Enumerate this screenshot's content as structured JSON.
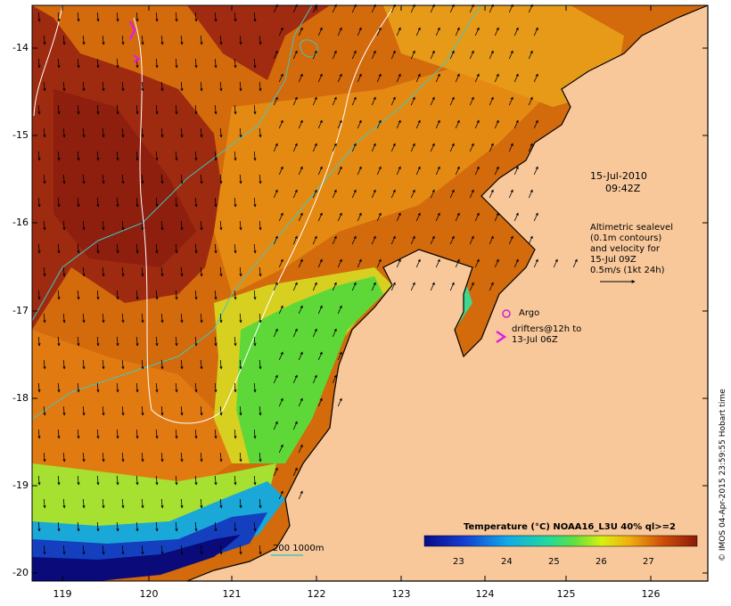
{
  "map": {
    "date": "15-Jul-2010",
    "time": "09:42Z",
    "altimetry_lines": [
      "Altimetric sealevel",
      "(0.1m contours)",
      "and velocity for",
      "15-Jul 09Z",
      "0.5m/s (1kt 24h)"
    ],
    "argo_label": "Argo",
    "drifter_lines": [
      "drifters@12h to",
      "13-Jul 06Z"
    ],
    "isobath_label": "200  1000m",
    "colorbar_title": "Temperature (°C) NOAA16_L3U 40% ql>=2",
    "colorbar_ticks": [
      "23",
      "24",
      "25",
      "26",
      "27"
    ],
    "credit": "© IMOS 04-Apr-2015 23:59:55 Hobart time",
    "y_ticks": [
      "-14",
      "-15",
      "-16",
      "-17",
      "-18",
      "-19",
      "-20"
    ],
    "x_ticks": [
      "119",
      "120",
      "121",
      "122",
      "123",
      "124",
      "125",
      "126"
    ],
    "colors": {
      "land": "#f8c89b",
      "isobath": "#40c8c0",
      "argo": "#d020d0",
      "drifter": "#e020e0"
    }
  }
}
